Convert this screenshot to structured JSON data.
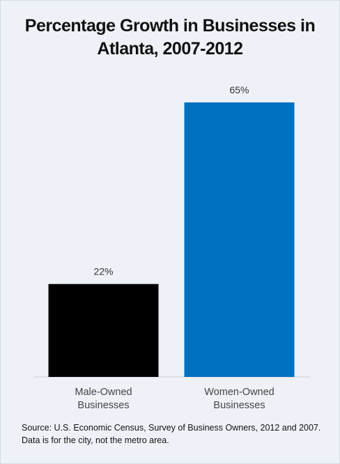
{
  "chart_data": {
    "type": "bar",
    "title": "Percentage Growth in Businesses in Atlanta, 2007-2012",
    "categories": [
      "Male-Owned Businesses",
      "Women-Owned Businesses"
    ],
    "series": [
      {
        "colors": [
          "#000000",
          "#0070c0"
        ],
        "values": [
          22,
          65
        ],
        "value_labels": [
          "22%",
          "65%"
        ]
      }
    ],
    "source": "Source: U.S. Economic Census, Survey of Business Owners, 2012 and 2007. Data is for the city, not the metro area."
  }
}
